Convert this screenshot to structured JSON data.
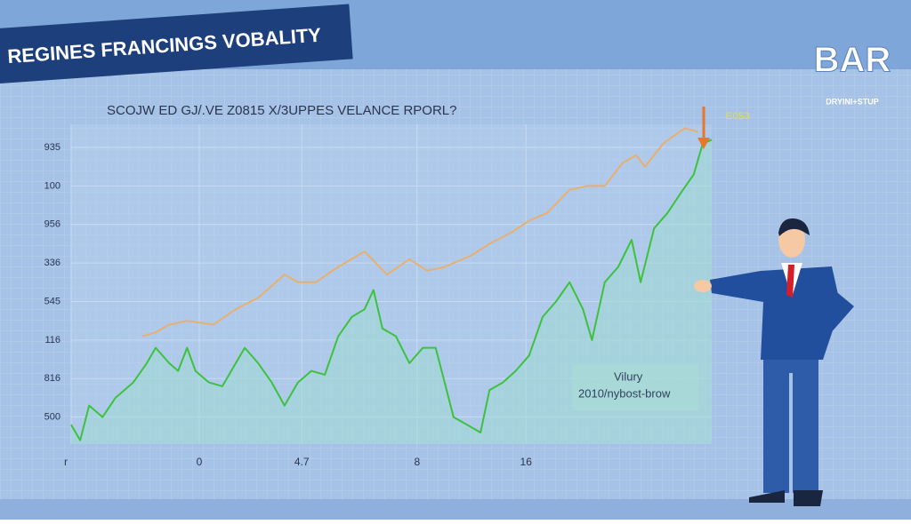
{
  "chart_data": {
    "type": "line",
    "title": "REGINES FRANCINGS VOBALITY",
    "subtitle": "SCOJW ED GJ/.VE Z0815 X/3UPPES VELANCE RPORL?",
    "logo": {
      "title": "BAR",
      "subtitle": "DRYINI+STUP"
    },
    "annotations": [
      "E0S3",
      "Vilury",
      "2010/nybost-brow"
    ],
    "xlim": [
      0,
      100
    ],
    "xticks": [
      {
        "value": 0,
        "label": "r"
      },
      {
        "value": 20,
        "label": "0"
      },
      {
        "value": 36,
        "label": "4.7"
      },
      {
        "value": 54,
        "label": "8"
      },
      {
        "value": 71,
        "label": "16"
      }
    ],
    "ylim": [
      -0.7,
      7.6
    ],
    "yticks": [
      {
        "value": 7,
        "label": "935"
      },
      {
        "value": 6,
        "label": "100"
      },
      {
        "value": 5,
        "label": "956"
      },
      {
        "value": 4,
        "label": "336"
      },
      {
        "value": 3,
        "label": "545"
      },
      {
        "value": 2,
        "label": "116"
      },
      {
        "value": 1,
        "label": "816"
      },
      {
        "value": 0,
        "label": "500"
      }
    ],
    "grid": true,
    "series": [
      {
        "color": "#3cc23c",
        "area": true,
        "x": [
          0,
          1.4,
          2.8,
          4.9,
          6.9,
          9.7,
          11.8,
          13.2,
          15.3,
          16.7,
          18.1,
          19.4,
          21.5,
          23.6,
          25.7,
          27.1,
          29.2,
          31.3,
          33.3,
          35.4,
          37.5,
          39.6,
          41.7,
          43.8,
          45.8,
          47.2,
          48.6,
          50.7,
          52.8,
          54.9,
          56.9,
          58.3,
          59.7,
          61.8,
          63.9,
          65.3,
          67.4,
          69.4,
          71.5,
          73.6,
          75.7,
          77.8,
          79.9,
          81.3,
          83.3,
          85.4,
          87.5,
          88.9,
          91.0,
          93.1,
          95.1,
          97.2,
          98.6,
          100
        ],
        "values": [
          -0.2,
          -0.6,
          0.3,
          0.0,
          0.5,
          0.9,
          1.4,
          1.8,
          1.4,
          1.2,
          1.8,
          1.2,
          0.9,
          0.8,
          1.4,
          1.8,
          1.4,
          0.9,
          0.3,
          0.9,
          1.2,
          1.1,
          2.1,
          2.6,
          2.8,
          3.3,
          2.3,
          2.1,
          1.4,
          1.8,
          1.8,
          0.9,
          0.0,
          -0.2,
          -0.4,
          0.7,
          0.9,
          1.2,
          1.6,
          2.6,
          3.0,
          3.5,
          2.8,
          2.0,
          3.5,
          3.9,
          4.6,
          3.5,
          4.9,
          5.3,
          5.8,
          6.3,
          7.1,
          7.2
        ]
      },
      {
        "color": "#e8b070",
        "area": false,
        "x": [
          11.1,
          13.2,
          15.3,
          18.1,
          22.2,
          25.7,
          29.2,
          33.3,
          35.4,
          38.2,
          41.7,
          45.8,
          49.3,
          52.8,
          55.6,
          58.3,
          62.5,
          65.3,
          68.8,
          71.5,
          74.3,
          77.8,
          80.6,
          83.3,
          86.1,
          88.2,
          89.6,
          92.4,
          95.8,
          97.9
        ],
        "values": [
          2.1,
          2.2,
          2.4,
          2.5,
          2.4,
          2.8,
          3.1,
          3.7,
          3.5,
          3.5,
          3.9,
          4.3,
          3.7,
          4.1,
          3.8,
          3.9,
          4.2,
          4.5,
          4.8,
          5.1,
          5.3,
          5.9,
          6.0,
          6.0,
          6.6,
          6.8,
          6.5,
          7.1,
          7.5,
          7.4
        ]
      }
    ]
  }
}
